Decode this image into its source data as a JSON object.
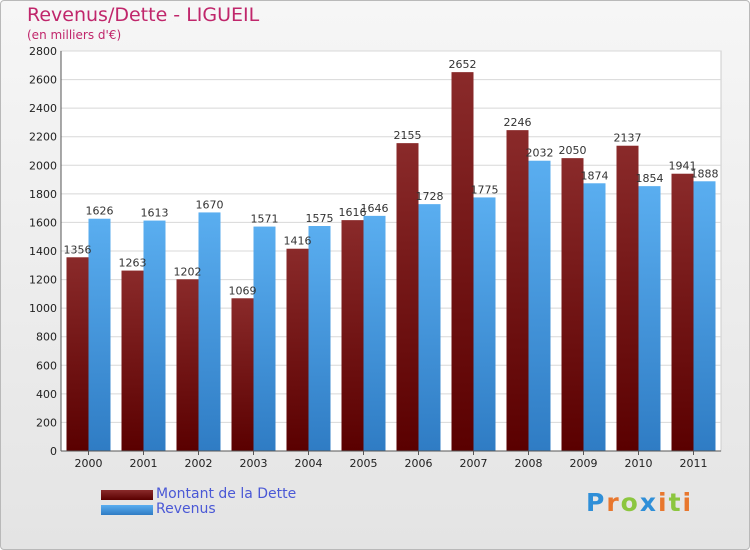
{
  "header": {
    "title": "Revenus/Dette - LIGUEIL",
    "subtitle": "(en milliers d'€)"
  },
  "legend": {
    "items": [
      {
        "label": "Montant de la Dette",
        "color": "#6e0a0a"
      },
      {
        "label": "Revenus",
        "color": "#4a9be0"
      }
    ]
  },
  "logo": {
    "letters": [
      {
        "char": "P",
        "color": "#2f8fd8"
      },
      {
        "char": "r",
        "color": "#e8772e"
      },
      {
        "char": "o",
        "color": "#8cc63f"
      },
      {
        "char": "x",
        "color": "#2f8fd8"
      },
      {
        "char": "i",
        "color": "#e8772e"
      },
      {
        "char": "t",
        "color": "#8cc63f"
      },
      {
        "char": "i",
        "color": "#e8772e"
      }
    ]
  },
  "chart_data": {
    "type": "bar",
    "title": "Revenus/Dette - LIGUEIL",
    "subtitle": "(en milliers d'€)",
    "categories": [
      "2000",
      "2001",
      "2002",
      "2003",
      "2004",
      "2005",
      "2006",
      "2007",
      "2008",
      "2009",
      "2010",
      "2011"
    ],
    "series": [
      {
        "name": "Montant de la Dette",
        "color": "#6e0a0a",
        "values": [
          1356,
          1263,
          1202,
          1069,
          1416,
          1616,
          2155,
          2652,
          2246,
          2050,
          2137,
          1941
        ]
      },
      {
        "name": "Revenus",
        "color": "#4a9be0",
        "values": [
          1626,
          1613,
          1670,
          1571,
          1575,
          1646,
          1728,
          1775,
          2032,
          1874,
          1854,
          1888
        ]
      }
    ],
    "ylim": [
      0,
      2800
    ],
    "yticks": [
      0,
      200,
      400,
      600,
      800,
      1000,
      1200,
      1400,
      1600,
      1800,
      2000,
      2200,
      2400,
      2600,
      2800
    ],
    "grid": true,
    "legend_position": "bottom-left"
  }
}
